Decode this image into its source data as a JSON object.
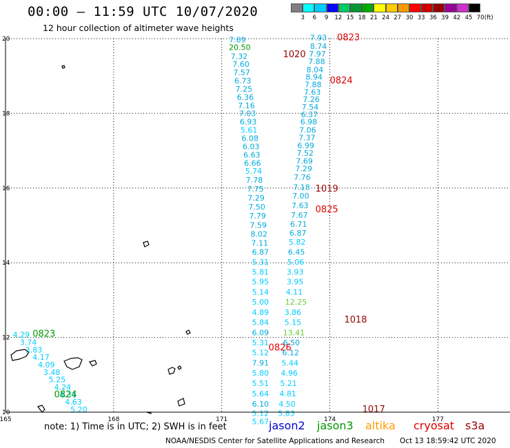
{
  "title": "00:00 – 11:59 UTC 10/07/2020",
  "subtitle": "12 hour collection of altimeter wave heights",
  "colorbar": {
    "labels": [
      "3",
      "6",
      "9",
      "12",
      "15",
      "18",
      "21",
      "24",
      "27",
      "30",
      "33",
      "36",
      "39",
      "42",
      "45",
      "70",
      "(ft)"
    ],
    "colors": [
      "#808080",
      "#00ffff",
      "#00ccff",
      "#0000ff",
      "#00cc66",
      "#009933",
      "#00aa00",
      "#ffff00",
      "#ffcc00",
      "#ff9900",
      "#ff0000",
      "#cc0000",
      "#990000",
      "#990099",
      "#cc33cc",
      "#000000"
    ]
  },
  "note": "note:  1) Time is in UTC;  2) SWH is in feet",
  "missions": [
    {
      "label": "jason2",
      "color": "#0000cc"
    },
    {
      "label": "jason3",
      "color": "#009900"
    },
    {
      "label": "altika",
      "color": "#ff9900"
    },
    {
      "label": "cryosat",
      "color": "#dd0000"
    },
    {
      "label": "s3a",
      "color": "#990000"
    }
  ],
  "footer_left": "NOAA/NESDIS Center for Satellite Applications and Research",
  "footer_right": "Oct 13 18:59:42 UTC 2020",
  "chart_data": {
    "type": "scatter",
    "xlim": [
      165,
      179
    ],
    "ylim": [
      10,
      20
    ],
    "x_ticks": [
      165,
      168,
      171,
      174,
      177
    ],
    "y_ticks": [
      10,
      12,
      14,
      16,
      18,
      20
    ],
    "grid": true,
    "track_labels": [
      {
        "text": "0823",
        "lon": 174.2,
        "lat": 19.95,
        "color": "#dd0000"
      },
      {
        "text": "1020",
        "lon": 172.7,
        "lat": 19.5,
        "color": "#990000"
      },
      {
        "text": "0824",
        "lon": 174.0,
        "lat": 18.8,
        "color": "#dd0000"
      },
      {
        "text": "1019",
        "lon": 173.6,
        "lat": 15.9,
        "color": "#990000"
      },
      {
        "text": "0825",
        "lon": 173.6,
        "lat": 15.35,
        "color": "#dd0000"
      },
      {
        "text": "1018",
        "lon": 174.4,
        "lat": 12.4,
        "color": "#990000"
      },
      {
        "text": "0826",
        "lon": 172.3,
        "lat": 11.65,
        "color": "#dd0000"
      },
      {
        "text": "1017",
        "lon": 174.9,
        "lat": 10.0,
        "color": "#990000"
      },
      {
        "text": "0823",
        "lon": 165.75,
        "lat": 12.02,
        "color": "#009900"
      },
      {
        "text": "0824",
        "lon": 166.35,
        "lat": 10.4,
        "color": "#009900"
      }
    ],
    "series": [
      {
        "name": "cryosat",
        "points": [
          {
            "lon": 173.45,
            "lat": 19.95,
            "v": "7.93"
          },
          {
            "lon": 173.45,
            "lat": 19.72,
            "v": "8.74"
          },
          {
            "lon": 173.42,
            "lat": 19.52,
            "v": "7.97"
          },
          {
            "lon": 173.4,
            "lat": 19.32,
            "v": "7.88"
          },
          {
            "lon": 173.35,
            "lat": 19.1,
            "v": "8.04"
          },
          {
            "lon": 173.33,
            "lat": 18.9,
            "v": "8.94"
          },
          {
            "lon": 173.3,
            "lat": 18.7,
            "v": "7.88"
          },
          {
            "lon": 173.28,
            "lat": 18.5,
            "v": "7.63"
          },
          {
            "lon": 173.25,
            "lat": 18.3,
            "v": "7.26"
          },
          {
            "lon": 173.22,
            "lat": 18.1,
            "v": "7.54"
          },
          {
            "lon": 173.2,
            "lat": 17.9,
            "v": "6.37"
          },
          {
            "lon": 173.18,
            "lat": 17.7,
            "v": "6.98"
          },
          {
            "lon": 173.15,
            "lat": 17.48,
            "v": "7.06"
          },
          {
            "lon": 173.13,
            "lat": 17.28,
            "v": "7.37"
          },
          {
            "lon": 173.1,
            "lat": 17.07,
            "v": "6.99"
          },
          {
            "lon": 173.08,
            "lat": 16.86,
            "v": "7.52"
          },
          {
            "lon": 173.06,
            "lat": 16.65,
            "v": "7.69"
          },
          {
            "lon": 173.04,
            "lat": 16.45,
            "v": "7.29"
          },
          {
            "lon": 173.0,
            "lat": 16.22,
            "v": "7.76"
          },
          {
            "lon": 172.98,
            "lat": 15.95,
            "v": "7.18"
          },
          {
            "lon": 172.96,
            "lat": 15.72,
            "v": "7.00"
          },
          {
            "lon": 172.94,
            "lat": 15.46,
            "v": "7.63"
          },
          {
            "lon": 172.92,
            "lat": 15.2,
            "v": "7.67"
          },
          {
            "lon": 172.9,
            "lat": 14.96,
            "v": "6.71"
          },
          {
            "lon": 172.88,
            "lat": 14.72,
            "v": "6.87"
          },
          {
            "lon": 172.86,
            "lat": 14.48,
            "v": "5.82"
          },
          {
            "lon": 172.84,
            "lat": 14.22,
            "v": "6.45"
          },
          {
            "lon": 172.82,
            "lat": 13.95,
            "v": "5.06"
          },
          {
            "lon": 172.8,
            "lat": 13.68,
            "v": "3.93"
          },
          {
            "lon": 172.8,
            "lat": 13.42,
            "v": "3.95"
          },
          {
            "lon": 172.78,
            "lat": 13.15,
            "v": "4.11"
          },
          {
            "lon": 172.76,
            "lat": 12.88,
            "v": "12.25"
          },
          {
            "lon": 172.74,
            "lat": 12.6,
            "v": "3.86"
          },
          {
            "lon": 172.74,
            "lat": 12.33,
            "v": "5.15"
          },
          {
            "lon": 172.7,
            "lat": 12.06,
            "v": "13.41"
          },
          {
            "lon": 172.7,
            "lat": 11.79,
            "v": "6.50"
          },
          {
            "lon": 172.68,
            "lat": 11.52,
            "v": "6.12"
          },
          {
            "lon": 172.66,
            "lat": 11.25,
            "v": "5.44"
          },
          {
            "lon": 172.64,
            "lat": 10.98,
            "v": "4.96"
          },
          {
            "lon": 172.62,
            "lat": 10.7,
            "v": "5.21"
          },
          {
            "lon": 172.6,
            "lat": 10.42,
            "v": "4.81"
          },
          {
            "lon": 172.58,
            "lat": 10.15,
            "v": "4.50"
          },
          {
            "lon": 172.56,
            "lat": 9.9,
            "v": "5.83"
          }
        ]
      },
      {
        "name": "jason2",
        "points": [
          {
            "lon": 171.2,
            "lat": 19.9,
            "v": "7.69"
          },
          {
            "lon": 171.2,
            "lat": 19.7,
            "v": "20.50"
          },
          {
            "lon": 171.25,
            "lat": 19.46,
            "v": "7.32"
          },
          {
            "lon": 171.3,
            "lat": 19.24,
            "v": "7.60"
          },
          {
            "lon": 171.32,
            "lat": 19.02,
            "v": "7.57"
          },
          {
            "lon": 171.35,
            "lat": 18.8,
            "v": "6.73"
          },
          {
            "lon": 171.38,
            "lat": 18.58,
            "v": "7.25"
          },
          {
            "lon": 171.42,
            "lat": 18.36,
            "v": "6.36"
          },
          {
            "lon": 171.45,
            "lat": 18.14,
            "v": "7.16"
          },
          {
            "lon": 171.48,
            "lat": 17.92,
            "v": "7.03"
          },
          {
            "lon": 171.5,
            "lat": 17.7,
            "v": "6.93"
          },
          {
            "lon": 171.52,
            "lat": 17.48,
            "v": "5.61"
          },
          {
            "lon": 171.55,
            "lat": 17.26,
            "v": "6.08"
          },
          {
            "lon": 171.58,
            "lat": 17.04,
            "v": "6.03"
          },
          {
            "lon": 171.6,
            "lat": 16.82,
            "v": "6.63"
          },
          {
            "lon": 171.62,
            "lat": 16.6,
            "v": "6.66"
          },
          {
            "lon": 171.65,
            "lat": 16.38,
            "v": "5.74"
          },
          {
            "lon": 171.67,
            "lat": 16.14,
            "v": "7.78"
          },
          {
            "lon": 171.7,
            "lat": 15.9,
            "v": "7.75"
          },
          {
            "lon": 171.72,
            "lat": 15.66,
            "v": "7.29"
          },
          {
            "lon": 171.74,
            "lat": 15.42,
            "v": "7.50"
          },
          {
            "lon": 171.76,
            "lat": 15.18,
            "v": "7.79"
          },
          {
            "lon": 171.78,
            "lat": 14.94,
            "v": "7.59"
          },
          {
            "lon": 171.8,
            "lat": 14.7,
            "v": "8.02"
          },
          {
            "lon": 171.82,
            "lat": 14.46,
            "v": "7.11"
          },
          {
            "lon": 171.84,
            "lat": 14.22,
            "v": "6.87"
          },
          {
            "lon": 171.84,
            "lat": 13.95,
            "v": "5.31"
          },
          {
            "lon": 171.84,
            "lat": 13.68,
            "v": "5.81"
          },
          {
            "lon": 171.84,
            "lat": 13.42,
            "v": "5.95"
          },
          {
            "lon": 171.84,
            "lat": 13.15,
            "v": "5.14"
          },
          {
            "lon": 171.84,
            "lat": 12.88,
            "v": "5.00"
          },
          {
            "lon": 171.84,
            "lat": 12.6,
            "v": "4.89"
          },
          {
            "lon": 171.84,
            "lat": 12.33,
            "v": "5.84"
          },
          {
            "lon": 171.84,
            "lat": 12.06,
            "v": "6.09"
          },
          {
            "lon": 171.84,
            "lat": 11.79,
            "v": "5.31"
          },
          {
            "lon": 171.84,
            "lat": 11.52,
            "v": "5.12"
          },
          {
            "lon": 171.84,
            "lat": 11.25,
            "v": "7.91"
          },
          {
            "lon": 171.84,
            "lat": 10.98,
            "v": "5.80"
          },
          {
            "lon": 171.84,
            "lat": 10.7,
            "v": "5.51"
          },
          {
            "lon": 171.84,
            "lat": 10.42,
            "v": "5.64"
          },
          {
            "lon": 171.84,
            "lat": 10.15,
            "v": "6.10"
          },
          {
            "lon": 171.84,
            "lat": 9.9,
            "v": "5.12"
          },
          {
            "lon": 171.84,
            "lat": 9.68,
            "v": "5.67"
          }
        ]
      },
      {
        "name": "jason3",
        "points": [
          {
            "lon": 165.2,
            "lat": 12.0,
            "v": "4.29"
          },
          {
            "lon": 165.4,
            "lat": 11.8,
            "v": "3.74"
          },
          {
            "lon": 165.55,
            "lat": 11.6,
            "v": "3.83"
          },
          {
            "lon": 165.75,
            "lat": 11.4,
            "v": "4.17"
          },
          {
            "lon": 165.9,
            "lat": 11.2,
            "v": "4.09"
          },
          {
            "lon": 166.05,
            "lat": 11.0,
            "v": "3.48"
          },
          {
            "lon": 166.2,
            "lat": 10.8,
            "v": "5.25"
          },
          {
            "lon": 166.35,
            "lat": 10.6,
            "v": "4.24"
          },
          {
            "lon": 166.5,
            "lat": 10.4,
            "v": "4.31"
          },
          {
            "lon": 166.65,
            "lat": 10.2,
            "v": "4.63"
          },
          {
            "lon": 166.8,
            "lat": 10.0,
            "v": "5.20"
          }
        ]
      }
    ]
  }
}
